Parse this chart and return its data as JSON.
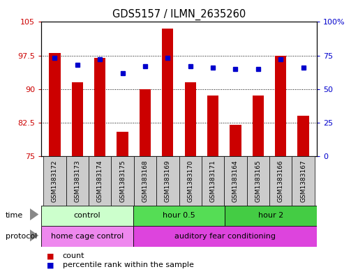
{
  "title": "GDS5157 / ILMN_2635260",
  "samples": [
    "GSM1383172",
    "GSM1383173",
    "GSM1383174",
    "GSM1383175",
    "GSM1383168",
    "GSM1383169",
    "GSM1383170",
    "GSM1383171",
    "GSM1383164",
    "GSM1383165",
    "GSM1383166",
    "GSM1383167"
  ],
  "count_values": [
    98.0,
    91.5,
    97.0,
    80.5,
    90.0,
    103.5,
    91.5,
    88.5,
    82.0,
    88.5,
    97.5,
    84.0
  ],
  "percentile_values": [
    73,
    68,
    72,
    62,
    67,
    73,
    67,
    66,
    65,
    65,
    72,
    66
  ],
  "ylim_left": [
    75,
    105
  ],
  "ylim_right": [
    0,
    100
  ],
  "yticks_left": [
    75,
    82.5,
    90,
    97.5,
    105
  ],
  "ytick_labels_left": [
    "75",
    "82.5",
    "90",
    "97.5",
    "105"
  ],
  "yticks_right": [
    0,
    25,
    50,
    75,
    100
  ],
  "ytick_labels_right": [
    "0",
    "25",
    "50",
    "75",
    "100%"
  ],
  "bar_color": "#cc0000",
  "dot_color": "#0000cc",
  "bar_width": 0.5,
  "groups": [
    {
      "label": "control",
      "start": 0,
      "end": 4,
      "color": "#ccffcc"
    },
    {
      "label": "hour 0.5",
      "start": 4,
      "end": 8,
      "color": "#55dd55"
    },
    {
      "label": "hour 2",
      "start": 8,
      "end": 12,
      "color": "#44cc44"
    }
  ],
  "protocols": [
    {
      "label": "home cage control",
      "start": 0,
      "end": 4,
      "color": "#ee88ee"
    },
    {
      "label": "auditory fear conditioning",
      "start": 4,
      "end": 12,
      "color": "#dd44dd"
    }
  ],
  "time_label": "time",
  "protocol_label": "protocol",
  "legend_count": "count",
  "legend_percentile": "percentile rank within the sample",
  "bg_color": "#ffffff",
  "plot_bg": "#ffffff",
  "tick_label_color_left": "#cc0000",
  "tick_label_color_right": "#0000cc",
  "grid_color": "#000000",
  "xlabel_tick_bg": "#cccccc",
  "border_color": "#000000",
  "arrow_color": "#888888"
}
